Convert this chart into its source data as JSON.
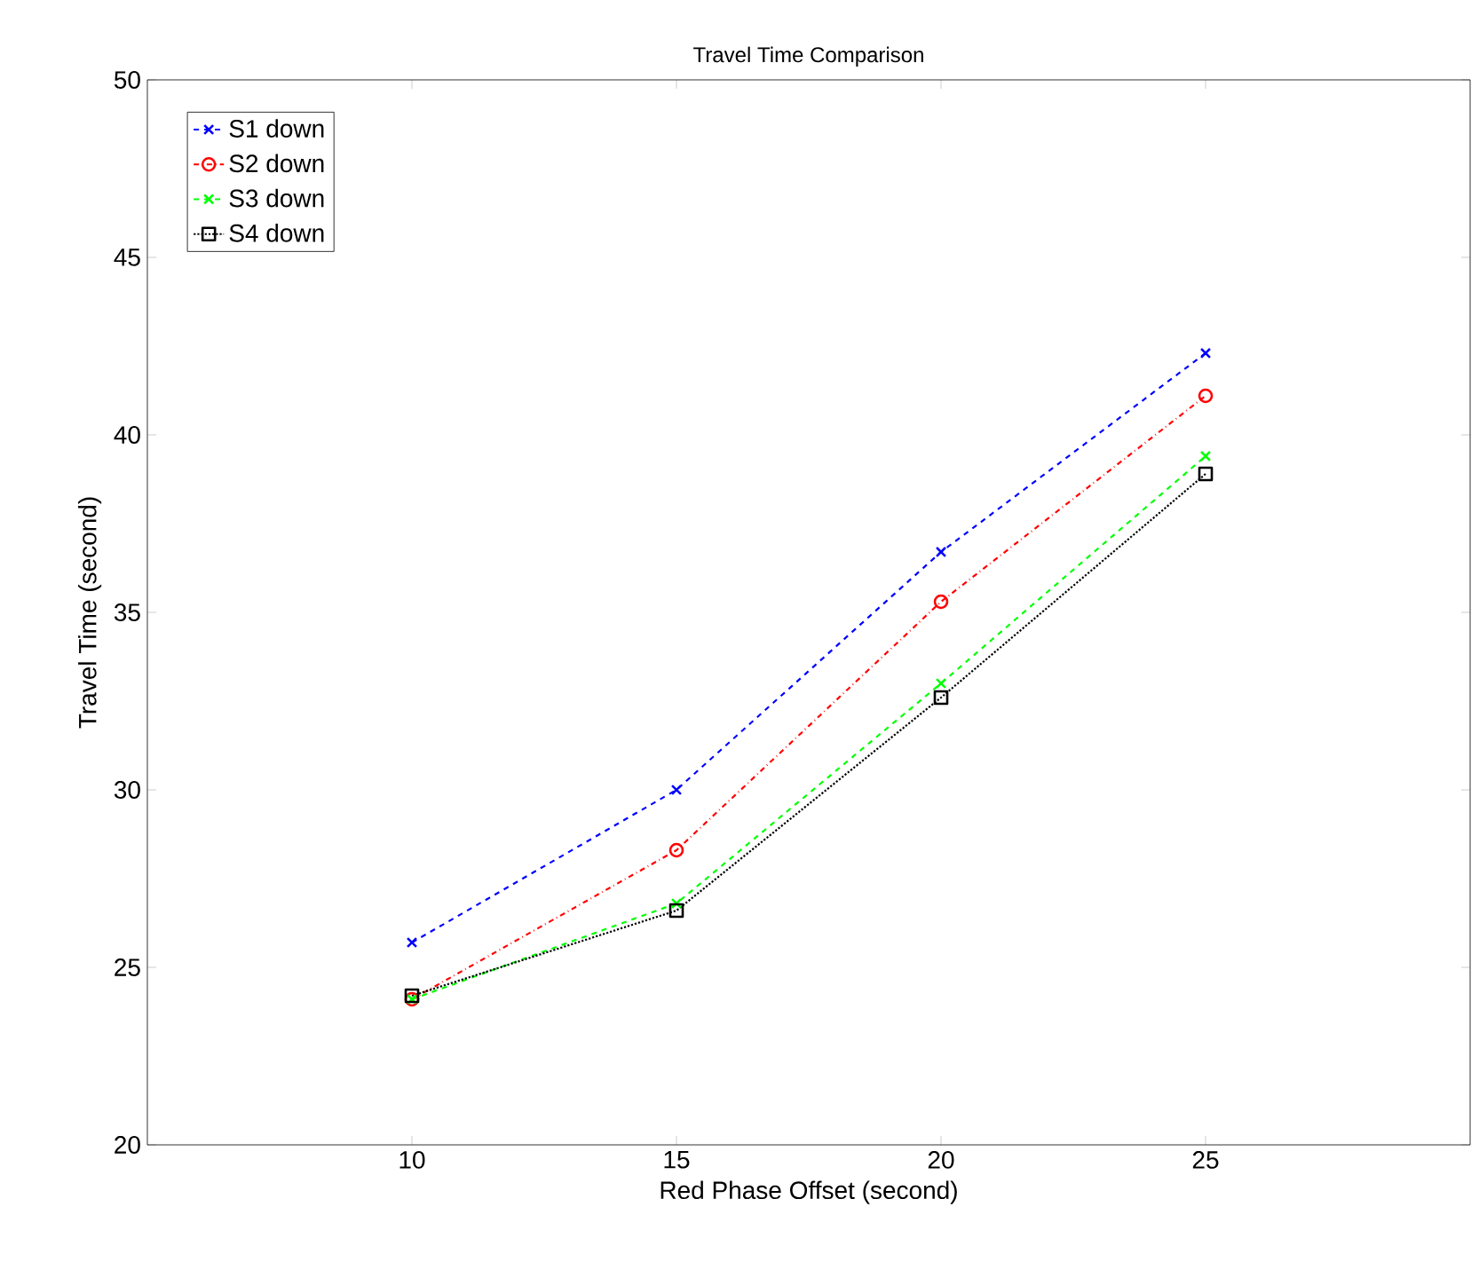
{
  "chart_data": {
    "type": "line",
    "title": "Travel Time Comparison",
    "xlabel": "Red Phase Offset (second)",
    "ylabel": "Travel Time (second)",
    "x": [
      10,
      15,
      20,
      25
    ],
    "series": [
      {
        "name": "S1 down",
        "color": "#0000ff",
        "marker": "cross",
        "line_style": "dashed",
        "values": [
          25.7,
          30.0,
          36.7,
          42.3
        ]
      },
      {
        "name": "S2 down",
        "color": "#ff0000",
        "marker": "circle",
        "line_style": "dashdot",
        "values": [
          24.1,
          28.3,
          35.3,
          41.1
        ]
      },
      {
        "name": "S3 down",
        "color": "#00ff00",
        "marker": "cross",
        "line_style": "dashed",
        "values": [
          24.1,
          26.8,
          33.0,
          39.4
        ]
      },
      {
        "name": "S4 down",
        "color": "#000000",
        "marker": "square",
        "line_style": "dotted",
        "values": [
          24.2,
          26.6,
          32.6,
          38.9
        ]
      }
    ],
    "xlim": [
      5,
      30
    ],
    "ylim": [
      20,
      50
    ],
    "xticks": [
      10,
      15,
      20,
      25
    ],
    "yticks": [
      20,
      25,
      30,
      35,
      40,
      45,
      50
    ],
    "grid": false,
    "legend": "top left"
  }
}
